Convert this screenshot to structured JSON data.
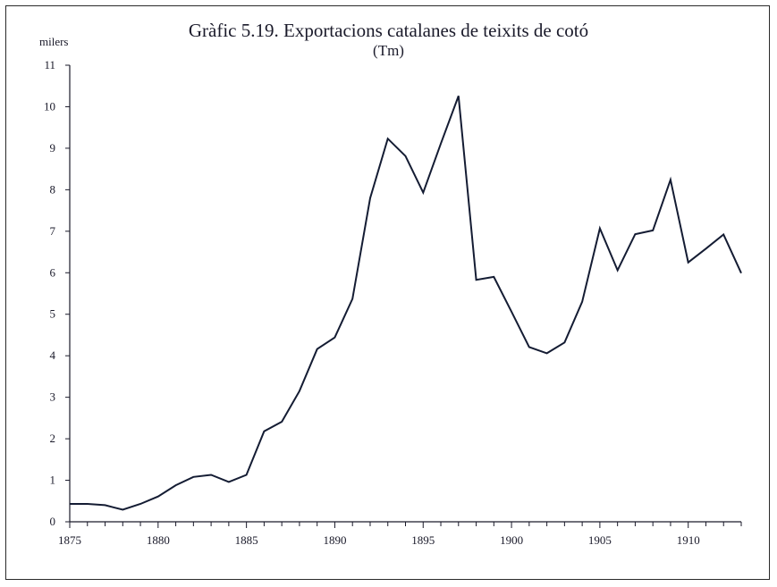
{
  "chart_data": {
    "type": "line",
    "title": "Gràfic 5.19. Exportacions catalanes de teixits de cotó",
    "subtitle": "(Tm)",
    "ylabel": "milers",
    "xlabel": "",
    "xlim": [
      1875,
      1913
    ],
    "ylim": [
      0,
      11
    ],
    "x_ticks_major": [
      1875,
      1880,
      1885,
      1890,
      1895,
      1900,
      1905,
      1910
    ],
    "y_ticks": [
      0,
      1,
      2,
      3,
      4,
      5,
      6,
      7,
      8,
      9,
      10,
      11
    ],
    "grid": false,
    "line_color": "#141c33",
    "series": [
      {
        "x": [
          1875,
          1876,
          1877,
          1878,
          1879,
          1880,
          1881,
          1882,
          1883,
          1884,
          1885,
          1886,
          1887,
          1888,
          1889,
          1890,
          1891,
          1892,
          1893,
          1894,
          1895,
          1896,
          1897,
          1898,
          1899,
          1900,
          1901,
          1902,
          1903,
          1904,
          1905,
          1906,
          1907,
          1908,
          1909,
          1910,
          1911,
          1912,
          1913
        ],
        "values": [
          0.43,
          0.43,
          0.4,
          0.29,
          0.43,
          0.61,
          0.88,
          1.08,
          1.13,
          0.96,
          1.13,
          2.18,
          2.41,
          3.15,
          4.16,
          4.44,
          5.37,
          7.8,
          9.23,
          8.81,
          7.93,
          9.11,
          10.26,
          5.83,
          5.9,
          5.06,
          4.21,
          4.06,
          4.32,
          5.3,
          7.07,
          6.06,
          6.93,
          7.02,
          8.24,
          6.25,
          6.58,
          6.92,
          5.99
        ]
      }
    ]
  }
}
